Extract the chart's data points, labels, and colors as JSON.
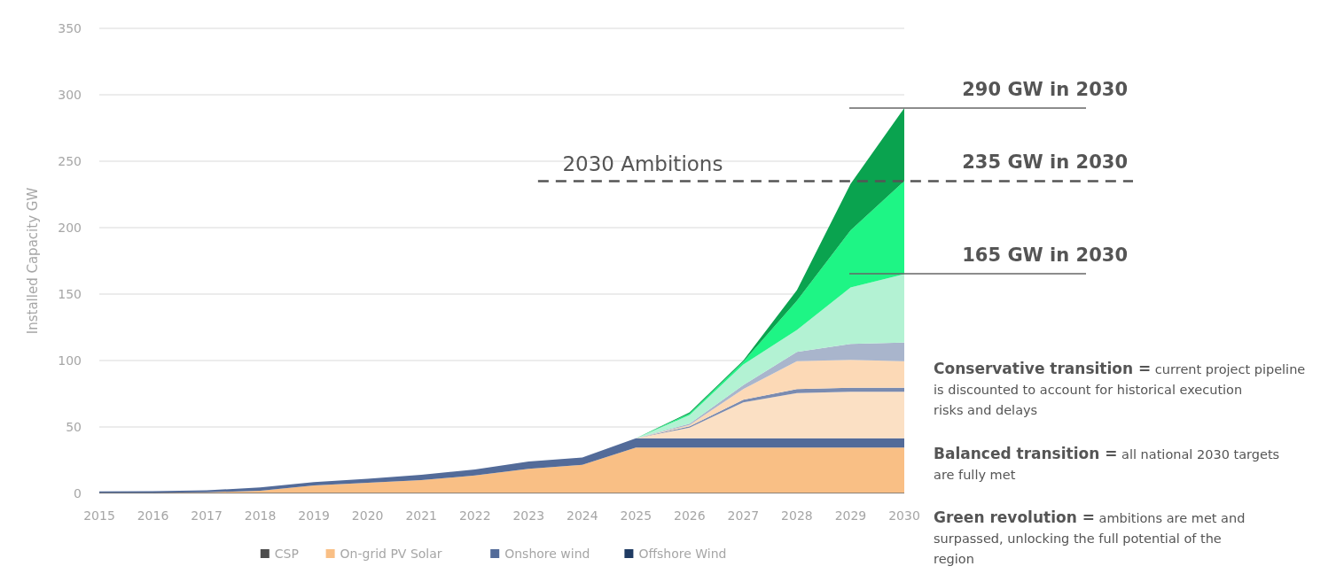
{
  "chart_data": {
    "type": "area",
    "stacked": true,
    "ylabel": "Installed Capacity GW",
    "x": [
      2015,
      2016,
      2017,
      2018,
      2019,
      2020,
      2021,
      2022,
      2023,
      2024,
      2025,
      2026,
      2027,
      2028,
      2029,
      2030
    ],
    "xlim": [
      2015,
      2030
    ],
    "ylim": [
      0,
      350
    ],
    "xticks": [
      2015,
      2016,
      2017,
      2018,
      2019,
      2020,
      2021,
      2022,
      2023,
      2024,
      2025,
      2026,
      2027,
      2028,
      2029,
      2030
    ],
    "yticks": [
      0,
      50,
      100,
      150,
      200,
      250,
      300,
      350
    ],
    "grid": "y",
    "legend": "bottom",
    "series": [
      {
        "name": "CSP",
        "color": "#4d4d4d",
        "values": [
          0.5,
          0.5,
          0.5,
          0.5,
          0.5,
          0.5,
          0.5,
          0.5,
          0.5,
          0.5,
          0.5,
          0.5,
          0.5,
          0.5,
          0.5,
          0.5
        ]
      },
      {
        "name": "On-grid PV Solar",
        "color": "#f9bf85",
        "values": [
          0,
          0,
          0.3,
          1.5,
          5.5,
          7.5,
          9.5,
          13,
          18,
          21,
          34,
          34,
          34,
          34,
          34,
          34
        ]
      },
      {
        "name": "Onshore wind",
        "color": "#536b99",
        "values": [
          1,
          1.2,
          1.5,
          2.5,
          2.5,
          3,
          4,
          4.5,
          5.5,
          5.5,
          7,
          7,
          7,
          7,
          7,
          7
        ]
      },
      {
        "name": "Offshore Wind",
        "color": "#1f3b63",
        "values": [
          null,
          null,
          null,
          null,
          null,
          null,
          null,
          null,
          null,
          null,
          null,
          null,
          null,
          null,
          null,
          null
        ]
      },
      {
        "color": "#fbe0c4",
        "values": [
          null,
          null,
          null,
          null,
          null,
          null,
          null,
          null,
          null,
          null,
          0,
          8,
          27,
          34,
          35,
          35
        ]
      },
      {
        "color": "#7a8bb0",
        "values": [
          null,
          null,
          null,
          null,
          null,
          null,
          null,
          null,
          null,
          null,
          0,
          1,
          2,
          3,
          3,
          3
        ]
      },
      {
        "color": "#fcd9b6",
        "values": [
          null,
          null,
          null,
          null,
          null,
          null,
          null,
          null,
          null,
          null,
          0,
          1,
          8,
          21,
          21,
          20
        ]
      },
      {
        "color": "#a9b5cc",
        "values": [
          null,
          null,
          null,
          null,
          null,
          null,
          null,
          null,
          null,
          null,
          0,
          1,
          3,
          7,
          12,
          14
        ]
      },
      {
        "color": "#b3f2d3",
        "values": [
          null,
          null,
          null,
          null,
          null,
          null,
          null,
          null,
          null,
          null,
          0,
          6.5,
          15.5,
          16.5,
          42.5,
          51.5
        ]
      },
      {
        "color": "#1ef585",
        "values": [
          null,
          null,
          null,
          null,
          null,
          null,
          null,
          null,
          null,
          null,
          0,
          1,
          2,
          22,
          43,
          70
        ]
      },
      {
        "color": "#0aa34f",
        "values": [
          null,
          null,
          null,
          null,
          null,
          null,
          null,
          null,
          null,
          null,
          0,
          1,
          1,
          8,
          35,
          55
        ]
      }
    ],
    "ref_lines": [
      {
        "axis": "y",
        "value": 235,
        "label": "2030 Ambitions",
        "line_style": "dashed",
        "color": "#555555"
      }
    ],
    "annotations": [
      "290 GW in 2030",
      "235 GW in 2030",
      "165 GW in 2030",
      "Conservative transition = current project pipeline is discounted to account for historical execution risks and delays",
      "Balanced transition = all national 2030 targets are fully met",
      "Green revolution = ambitions are met and surpassed, unlocking the full potential of the region"
    ]
  }
}
